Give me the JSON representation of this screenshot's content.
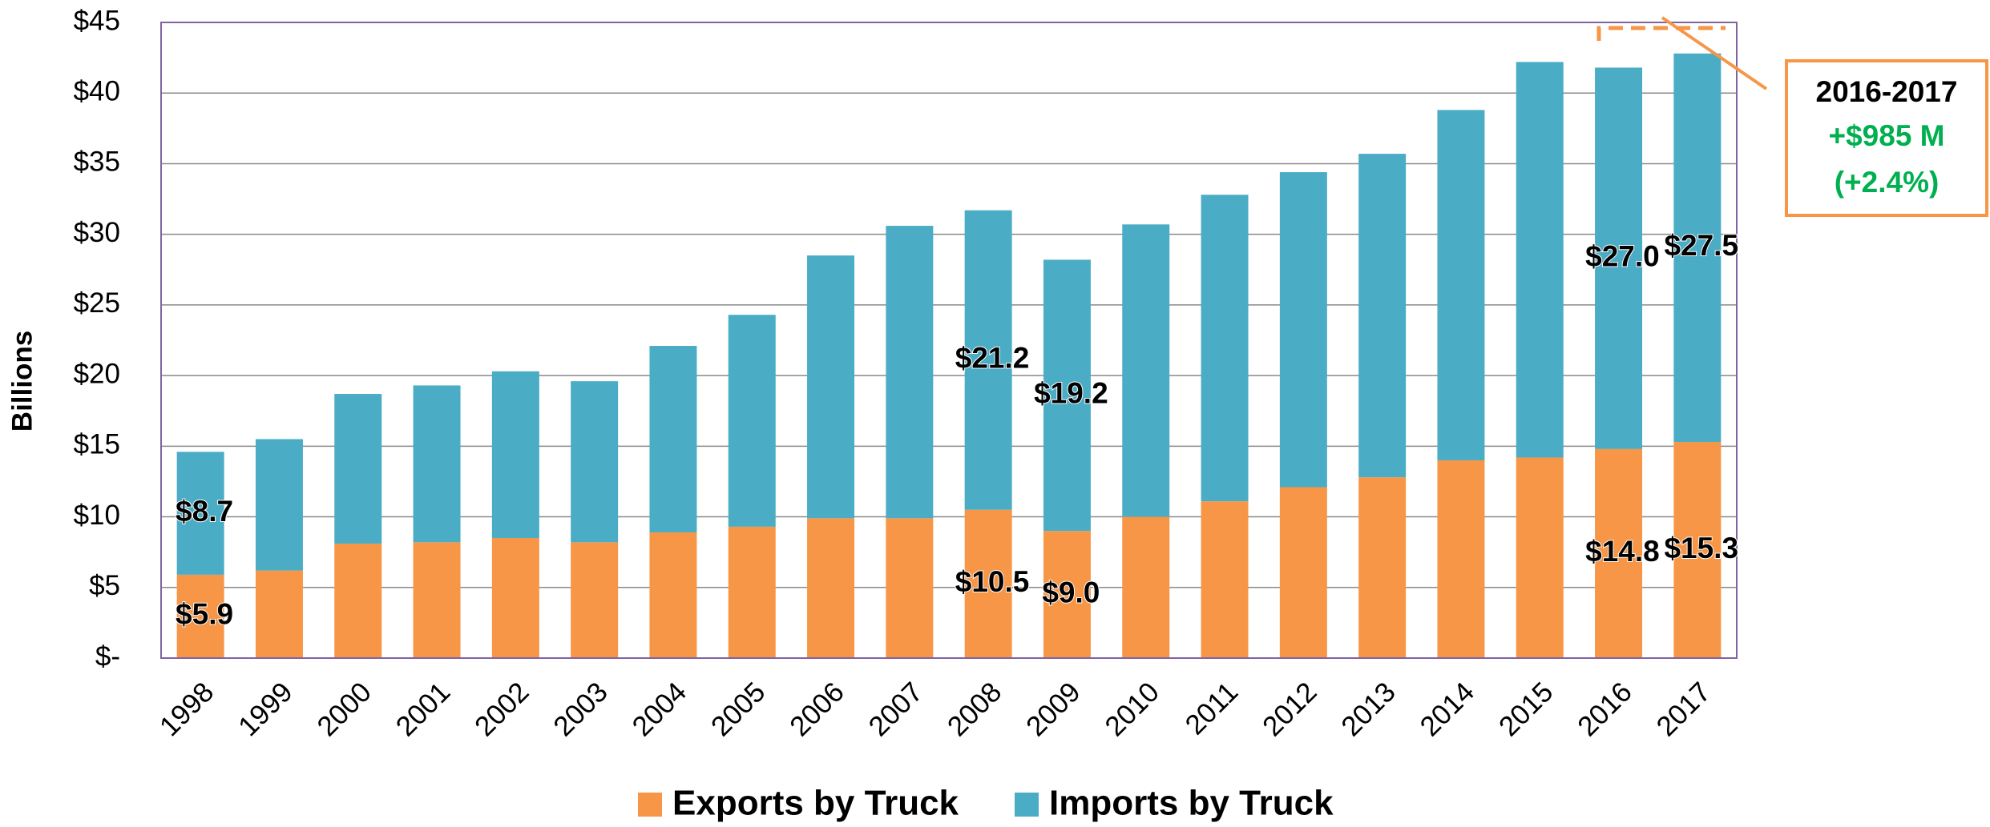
{
  "chart_data": {
    "type": "stacked_bar",
    "y_label": "Billions",
    "categories": [
      "1998",
      "1999",
      "2000",
      "2001",
      "2002",
      "2003",
      "2004",
      "2005",
      "2006",
      "2007",
      "2008",
      "2009",
      "2010",
      "2011",
      "2012",
      "2013",
      "2014",
      "2015",
      "2016",
      "2017"
    ],
    "series": [
      {
        "name": "Exports by Truck",
        "color": "#F79646",
        "values": [
          5.9,
          6.2,
          8.1,
          8.2,
          8.5,
          8.2,
          8.9,
          9.3,
          9.9,
          9.9,
          10.5,
          9.0,
          10.0,
          11.1,
          12.1,
          12.8,
          14.0,
          14.2,
          14.8,
          15.3
        ],
        "value_labels": [
          "$5.9",
          null,
          null,
          null,
          null,
          null,
          null,
          null,
          null,
          null,
          "$10.5",
          "$9.0",
          null,
          null,
          null,
          null,
          null,
          null,
          "$14.8",
          "$15.3"
        ]
      },
      {
        "name": "Imports by Truck",
        "color": "#4BACC6",
        "values": [
          8.7,
          9.3,
          10.6,
          11.1,
          11.8,
          11.4,
          13.2,
          15.0,
          18.6,
          20.7,
          21.2,
          19.2,
          20.7,
          21.7,
          22.3,
          22.9,
          24.8,
          28.0,
          27.0,
          27.5
        ],
        "value_labels": [
          "$8.7",
          null,
          null,
          null,
          null,
          null,
          null,
          null,
          null,
          null,
          "$21.2",
          "$19.2",
          null,
          null,
          null,
          null,
          null,
          null,
          "$27.0",
          "$27.5"
        ]
      }
    ],
    "ylim": [
      0,
      45
    ],
    "yticks": [
      {
        "value": 0,
        "label": "$-"
      },
      {
        "value": 5,
        "label": "$5"
      },
      {
        "value": 10,
        "label": "$10"
      },
      {
        "value": 15,
        "label": "$15"
      },
      {
        "value": 20,
        "label": "$20"
      },
      {
        "value": 25,
        "label": "$25"
      },
      {
        "value": 30,
        "label": "$30"
      },
      {
        "value": 35,
        "label": "$35"
      },
      {
        "value": 40,
        "label": "$40"
      },
      {
        "value": 45,
        "label": "$45"
      }
    ],
    "grid": true,
    "legend": "bottom",
    "annotation": {
      "title": "2016-2017",
      "change": "+$985 M",
      "percent": "(+2.4%)"
    }
  }
}
